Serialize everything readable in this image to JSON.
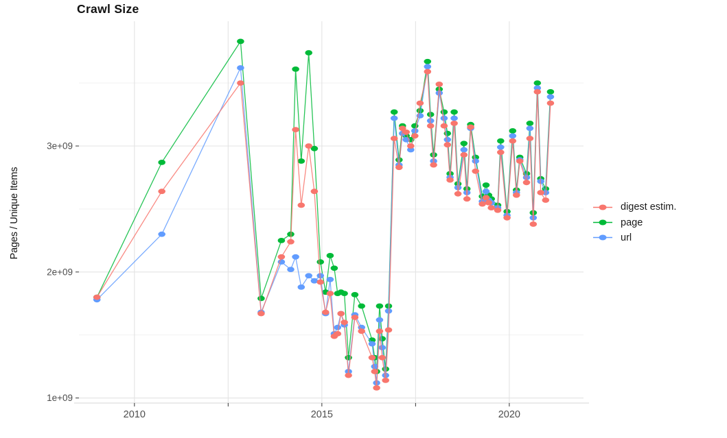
{
  "title": "Crawl Size",
  "chart_data": {
    "type": "line",
    "title": "Crawl Size",
    "xlabel": "",
    "ylabel": "Pages / Unique Items",
    "legend_position": "right",
    "grid": true,
    "x_unit": "year (decimal date of crawl)",
    "y_unit": "count, shown in units of 1e9 (billions)",
    "xlim": [
      2008.52,
      2021.98
    ],
    "ylim": [
      0.96,
      3.99
    ],
    "x_ticks": [
      {
        "value": 2010.0,
        "label": "2010"
      },
      {
        "value": 2012.5,
        "label": ""
      },
      {
        "value": 2015.0,
        "label": "2015"
      },
      {
        "value": 2017.5,
        "label": ""
      },
      {
        "value": 2020.0,
        "label": "2020"
      }
    ],
    "y_ticks": [
      {
        "value": 1,
        "label": "1e+09"
      },
      {
        "value": 2,
        "label": "2e+09"
      },
      {
        "value": 3,
        "label": "3e+09"
      }
    ],
    "y_minor_gridlines": [
      1.5,
      2.5,
      3.5
    ],
    "x": [
      2009.0,
      2010.73,
      2012.83,
      2013.38,
      2013.92,
      2014.17,
      2014.3,
      2014.45,
      2014.65,
      2014.8,
      2014.96,
      2015.1,
      2015.22,
      2015.33,
      2015.42,
      2015.51,
      2015.6,
      2015.71,
      2015.88,
      2016.06,
      2016.34,
      2016.41,
      2016.46,
      2016.54,
      2016.61,
      2016.7,
      2016.78,
      2016.93,
      2017.06,
      2017.15,
      2017.25,
      2017.37,
      2017.48,
      2017.62,
      2017.82,
      2017.9,
      2017.98,
      2018.13,
      2018.26,
      2018.35,
      2018.42,
      2018.53,
      2018.63,
      2018.79,
      2018.87,
      2018.97,
      2019.1,
      2019.28,
      2019.38,
      2019.45,
      2019.52,
      2019.69,
      2019.77,
      2019.94,
      2020.09,
      2020.19,
      2020.28,
      2020.46,
      2020.55,
      2020.64,
      2020.75,
      2020.84,
      2020.97,
      2021.1
    ],
    "series": [
      {
        "name": "digest estim.",
        "color": "#F8766D",
        "values": [
          1.8,
          2.64,
          3.5,
          1.67,
          2.12,
          2.24,
          3.13,
          2.53,
          3.0,
          2.64,
          1.92,
          1.68,
          1.83,
          1.49,
          1.51,
          1.67,
          1.6,
          1.18,
          1.64,
          1.53,
          1.32,
          1.21,
          1.08,
          1.53,
          1.32,
          1.14,
          1.54,
          3.06,
          2.83,
          3.14,
          3.11,
          3.0,
          3.08,
          3.34,
          3.59,
          3.16,
          2.85,
          3.49,
          3.16,
          3.01,
          2.73,
          3.18,
          2.62,
          2.93,
          2.58,
          3.15,
          2.8,
          2.54,
          2.59,
          2.55,
          2.51,
          2.49,
          2.95,
          2.43,
          3.04,
          2.61,
          2.88,
          2.71,
          3.06,
          2.38,
          3.43,
          2.63,
          2.57,
          3.34
        ]
      },
      {
        "name": "page",
        "color": "#00BA38",
        "values": [
          1.8,
          2.87,
          3.83,
          1.79,
          2.25,
          2.3,
          3.61,
          2.88,
          3.74,
          2.98,
          2.08,
          1.84,
          2.13,
          2.03,
          1.83,
          1.84,
          1.83,
          1.32,
          1.82,
          1.73,
          1.46,
          1.32,
          1.21,
          1.73,
          1.47,
          1.23,
          1.73,
          3.27,
          2.89,
          3.16,
          3.08,
          3.05,
          3.16,
          3.28,
          3.67,
          3.25,
          2.93,
          3.45,
          3.27,
          3.1,
          2.78,
          3.27,
          2.7,
          3.02,
          2.66,
          3.17,
          2.91,
          2.6,
          2.69,
          2.61,
          2.58,
          2.53,
          3.04,
          2.48,
          3.12,
          2.65,
          2.91,
          2.78,
          3.18,
          2.47,
          3.5,
          2.74,
          2.66,
          3.43
        ]
      },
      {
        "name": "url",
        "color": "#619CFF",
        "values": [
          1.78,
          2.3,
          3.62,
          1.68,
          2.08,
          2.02,
          2.12,
          1.88,
          1.97,
          1.93,
          1.97,
          1.67,
          1.94,
          1.51,
          1.56,
          1.67,
          1.58,
          1.21,
          1.66,
          1.56,
          1.43,
          1.25,
          1.12,
          1.62,
          1.4,
          1.18,
          1.69,
          3.22,
          2.85,
          3.1,
          3.05,
          2.97,
          3.12,
          3.24,
          3.63,
          3.2,
          2.88,
          3.42,
          3.22,
          3.05,
          2.75,
          3.22,
          2.67,
          2.97,
          2.63,
          3.14,
          2.88,
          2.56,
          2.64,
          2.57,
          2.55,
          2.51,
          2.99,
          2.45,
          3.08,
          2.63,
          2.89,
          2.75,
          3.14,
          2.43,
          3.46,
          2.72,
          2.63,
          3.39
        ]
      }
    ]
  },
  "style": {
    "grid_major_color": "#E3E3E3",
    "grid_minor_color": "#EFEFEF",
    "axis_line_color": "#D4D4D4",
    "tick_mark_color": "#333333",
    "tick_label_color": "#4D4D4D"
  }
}
